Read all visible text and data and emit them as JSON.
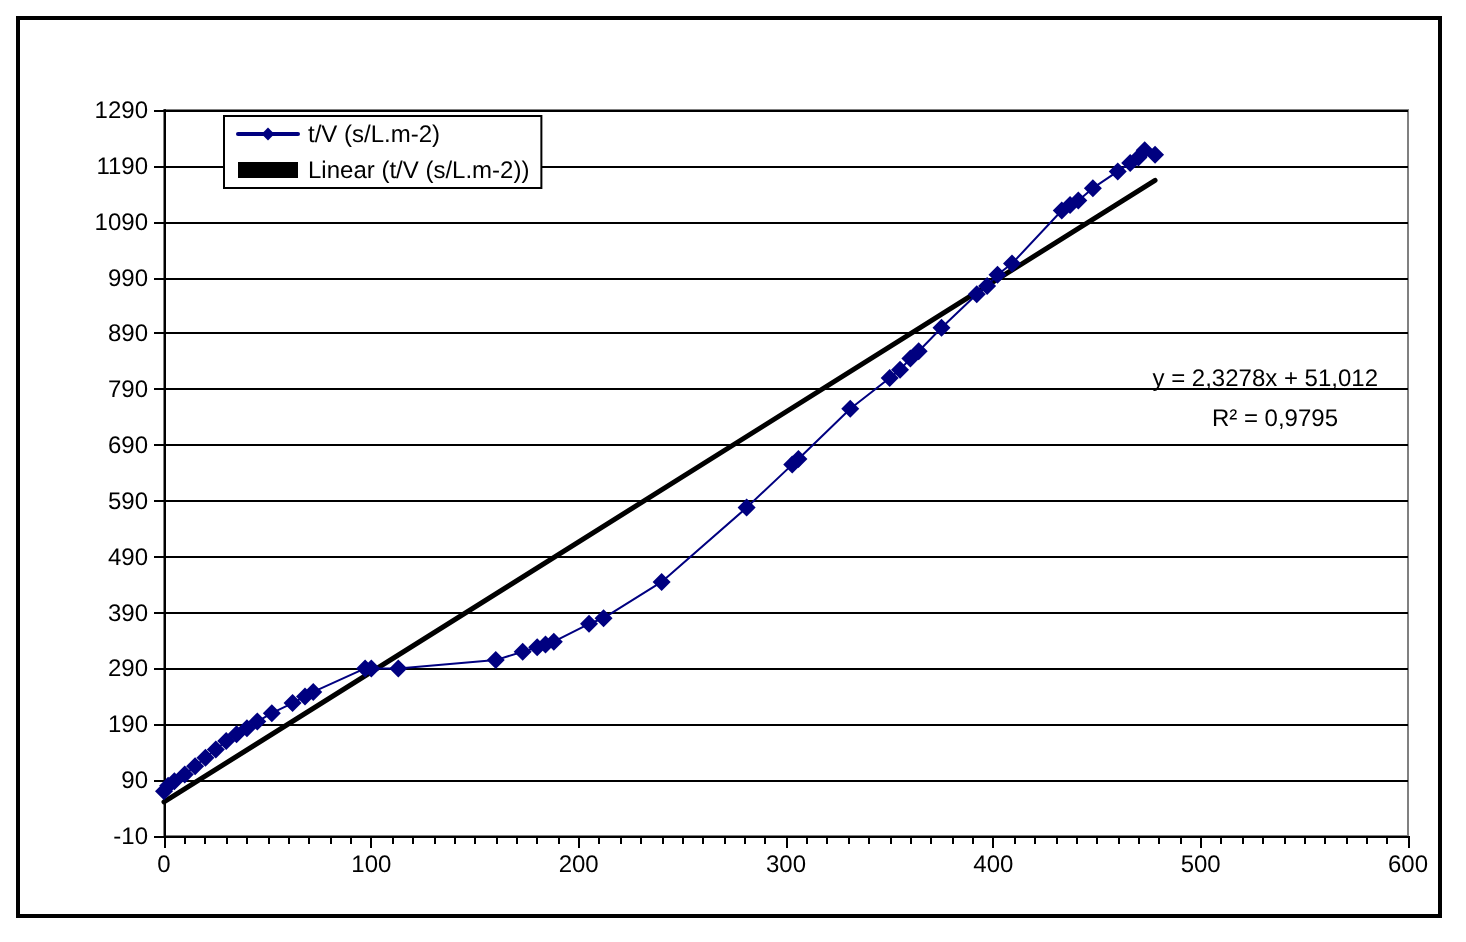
{
  "chart_data": {
    "type": "line",
    "xlim": [
      0,
      600
    ],
    "xticks": [
      0,
      100,
      200,
      300,
      400,
      500,
      600
    ],
    "ylim": [
      -10,
      1290
    ],
    "yticks": [
      -10,
      90,
      190,
      290,
      390,
      490,
      590,
      690,
      790,
      890,
      990,
      1090,
      1190,
      1290
    ],
    "grid": "y",
    "legend": "top left",
    "marker": "diamond",
    "line_style": "solid",
    "annotations": [
      "y = 2,3278x + 51,012",
      "R² = 0,9795"
    ],
    "series": [
      {
        "name": "t/V (s/L.m-2)",
        "color": "#000080",
        "x": [
          0,
          2,
          5,
          10,
          15,
          20,
          25,
          30,
          35,
          40,
          45,
          52,
          62,
          68,
          72,
          97,
          100,
          113,
          160,
          173,
          180,
          184,
          188,
          205,
          212,
          240,
          281,
          303,
          306,
          331,
          350,
          355,
          360,
          364,
          375,
          392,
          397,
          402,
          409,
          433,
          437,
          441,
          448,
          460,
          466,
          470,
          473,
          478
        ],
        "values": [
          70,
          80,
          88,
          100,
          115,
          130,
          145,
          160,
          172,
          183,
          195,
          210,
          228,
          240,
          248,
          290,
          290,
          290,
          305,
          320,
          328,
          333,
          338,
          370,
          380,
          445,
          578,
          655,
          665,
          755,
          810,
          825,
          845,
          858,
          900,
          960,
          975,
          995,
          1015,
          1110,
          1120,
          1128,
          1150,
          1180,
          1195,
          1205,
          1218,
          1210
        ]
      },
      {
        "name": "Linear (t/V (s/L.m-2))",
        "type": "line",
        "marker": "none",
        "color": "#000000",
        "x": [
          0,
          478
        ],
        "values": [
          51,
          1164
        ]
      }
    ]
  }
}
